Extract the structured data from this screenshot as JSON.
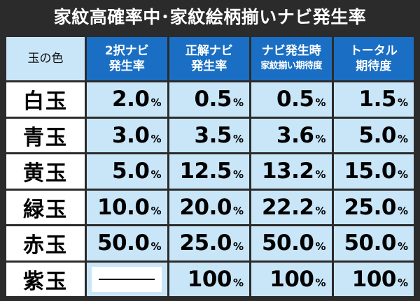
{
  "title": "家紋高確率中･家紋絵柄揃いナビ発生率",
  "header": {
    "corner": "玉の色",
    "columns": [
      {
        "line1": "2択ナビ",
        "line2": "発生率",
        "small": false
      },
      {
        "line1": "正解ナビ",
        "line2": "発生率",
        "small": false
      },
      {
        "line1": "ナビ発生時",
        "line2": "家紋揃い期待度",
        "small": true
      },
      {
        "line1": "トータル",
        "line2": "期待度",
        "small": false
      }
    ]
  },
  "percent_sign": "%",
  "dash_symbol": "—",
  "rows": [
    {
      "label": "白玉",
      "values": [
        "2.0",
        "0.5",
        "0.5",
        "1.5"
      ]
    },
    {
      "label": "青玉",
      "values": [
        "3.0",
        "3.5",
        "3.6",
        "5.0"
      ]
    },
    {
      "label": "黄玉",
      "values": [
        "5.0",
        "12.5",
        "13.2",
        "15.0"
      ]
    },
    {
      "label": "緑玉",
      "values": [
        "10.0",
        "20.0",
        "22.2",
        "25.0"
      ]
    },
    {
      "label": "赤玉",
      "values": [
        "50.0",
        "25.0",
        "50.0",
        "50.0"
      ]
    },
    {
      "label": "紫玉",
      "values": [
        null,
        "100",
        "100",
        "100"
      ]
    }
  ],
  "colors": {
    "header_blue": "#1a6fc4",
    "cell_light_blue": "#c9e6f8",
    "frame_dark": "#2b2b2b"
  }
}
